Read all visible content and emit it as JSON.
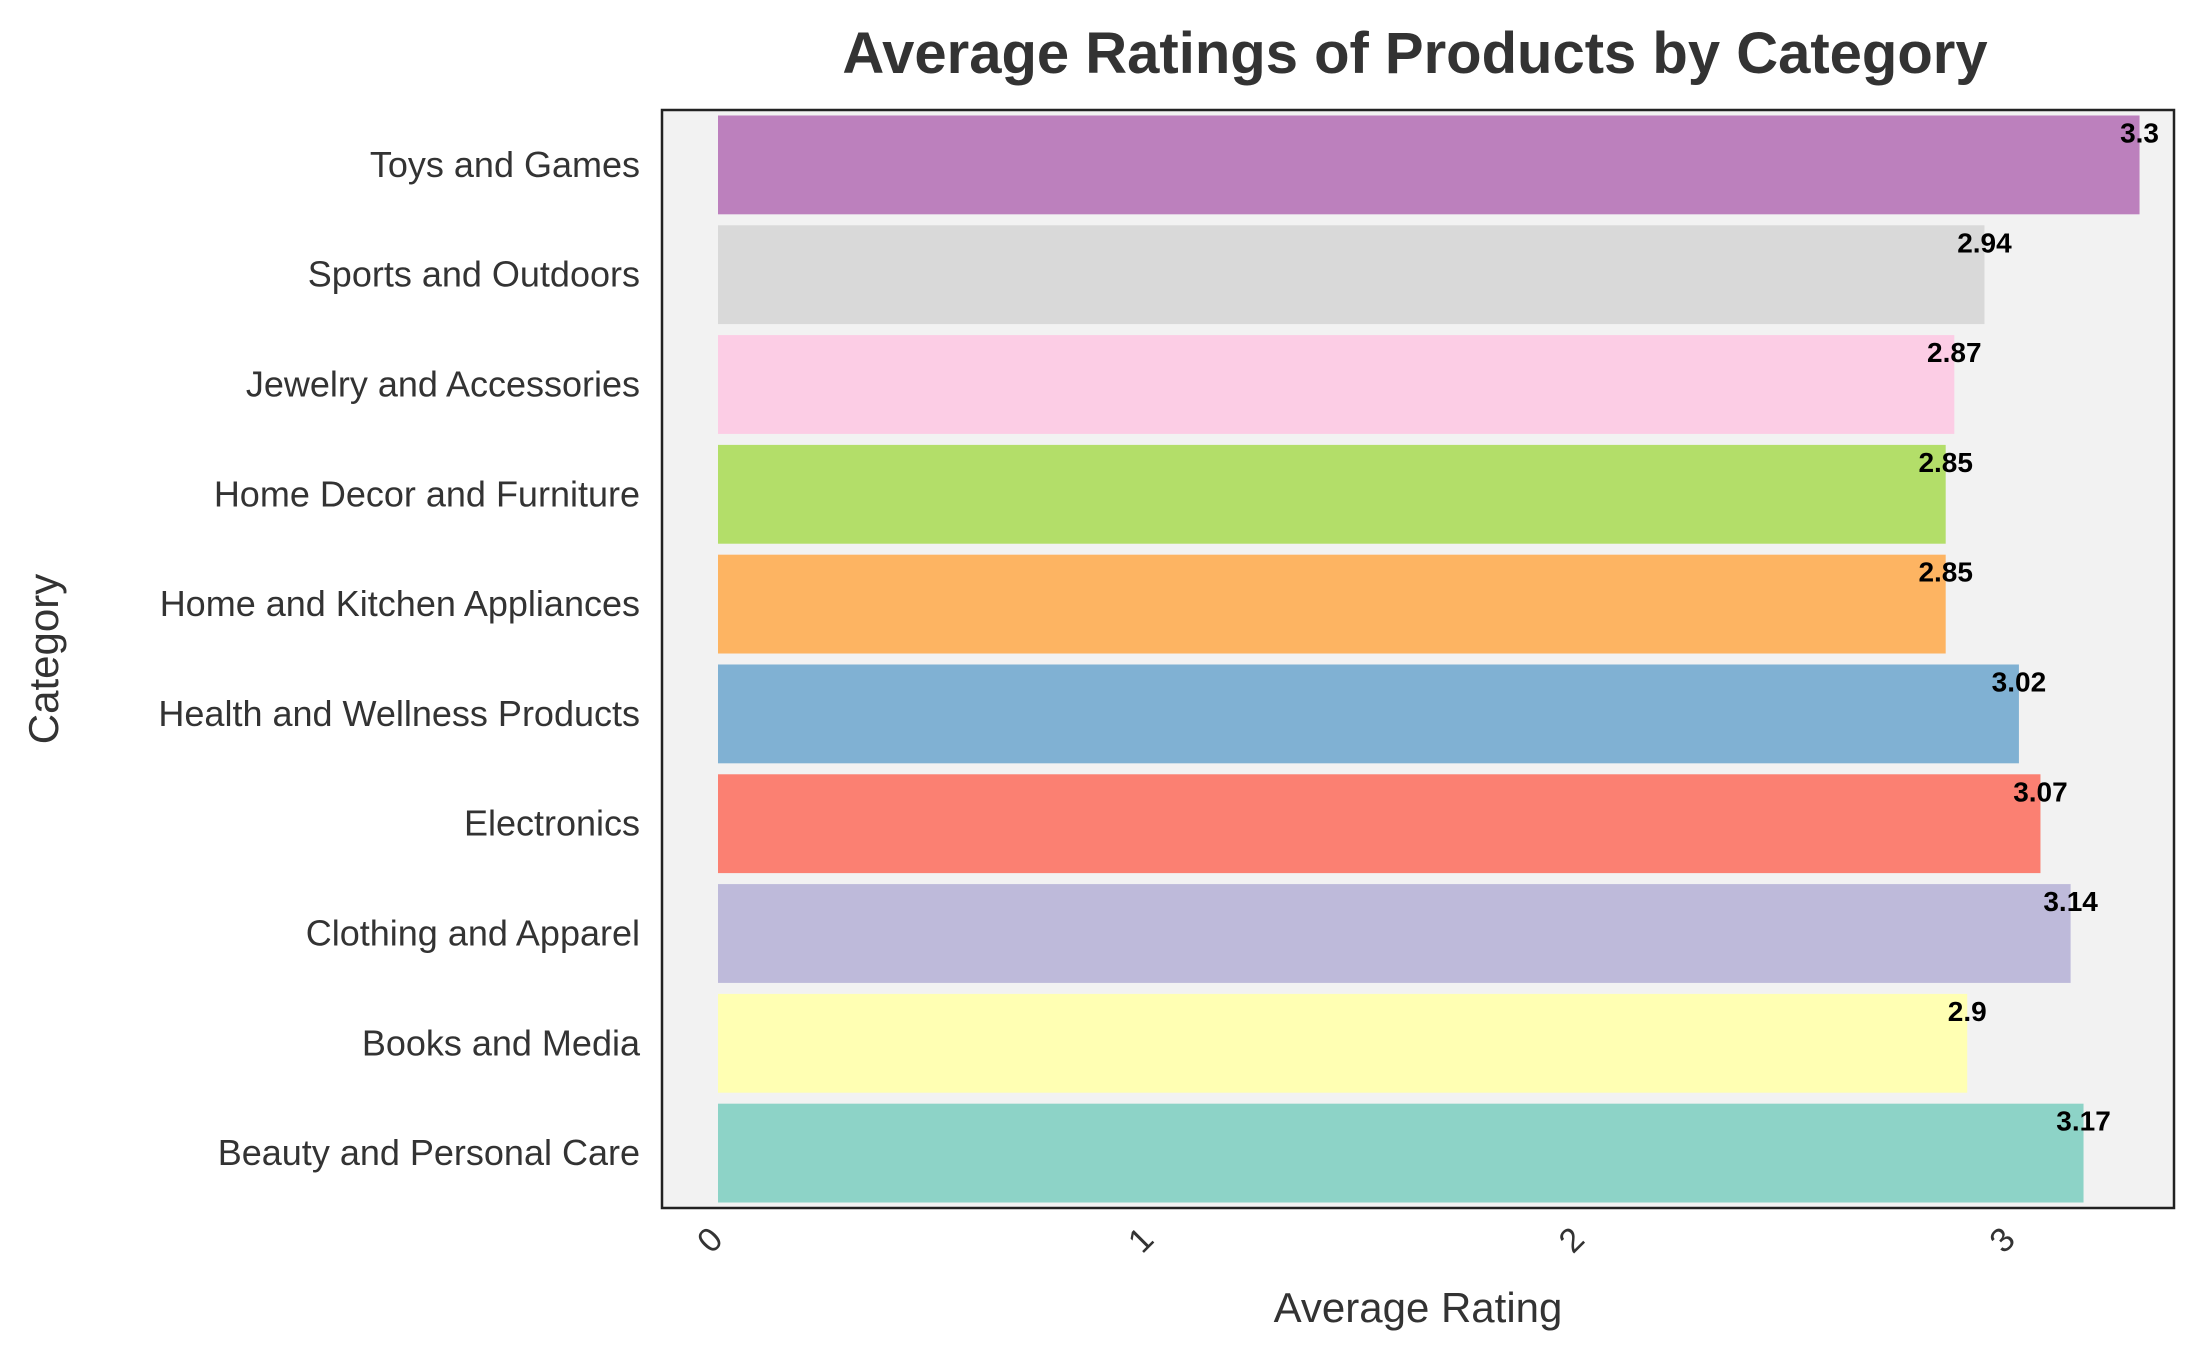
{
  "chart_data": {
    "type": "bar",
    "orientation": "horizontal",
    "title": "Average Ratings of Products by Category",
    "xlabel": "Average Rating",
    "ylabel": "Category",
    "xlim": [
      -0.13,
      3.38
    ],
    "xticks": [
      "0",
      "1",
      "2",
      "3"
    ],
    "grid": false,
    "background": "#f2f2f2",
    "categories": [
      "Beauty and Personal Care",
      "Books and Media",
      "Clothing and Apparel",
      "Electronics",
      "Health and Wellness Products",
      "Home and Kitchen Appliances",
      "Home Decor and Furniture",
      "Jewelry and Accessories",
      "Sports and Outdoors",
      "Toys and Games"
    ],
    "values": [
      3.17,
      2.9,
      3.14,
      3.07,
      3.02,
      2.85,
      2.85,
      2.87,
      2.94,
      3.3
    ],
    "labels": [
      "3.17",
      "2.9",
      "3.14",
      "3.07",
      "3.02",
      "2.85",
      "2.85",
      "2.87",
      "2.94",
      "3.3"
    ],
    "colors": [
      "#8dd3c7",
      "#ffffb3",
      "#bebada",
      "#fb8072",
      "#80b1d3",
      "#fdb462",
      "#b3de69",
      "#fccde5",
      "#d9d9d9",
      "#bc80bd"
    ]
  }
}
